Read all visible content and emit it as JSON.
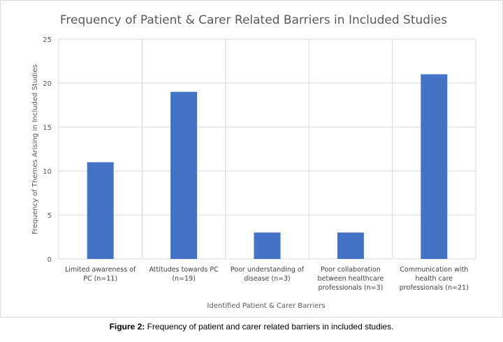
{
  "chart_data": {
    "type": "bar",
    "title": "Frequency of Patient & Carer Related Barriers in Included Studies",
    "xlabel": "Identified Patient & Carer Barriers",
    "ylabel": "Frequency of Themes Arising in Included Studies",
    "categories": [
      [
        "Limited awareness of",
        "PC (n=11)"
      ],
      [
        "Attitudes towards PC",
        "(n=19)"
      ],
      [
        "Poor understanding of",
        "disease (n=3)"
      ],
      [
        "Poor collaboration",
        "between healthcare",
        "professionals (n=3)"
      ],
      [
        "Communication with",
        "health care",
        "professionals (n=21)"
      ]
    ],
    "values": [
      11,
      19,
      3,
      3,
      21
    ],
    "ylim": [
      0,
      25
    ],
    "yticks": [
      0,
      5,
      10,
      15,
      20,
      25
    ],
    "grid": true,
    "bar_color": "#4472c4"
  },
  "caption": {
    "label": "Figure 2:",
    "text": " Frequency of patient and carer related barriers in included studies."
  }
}
